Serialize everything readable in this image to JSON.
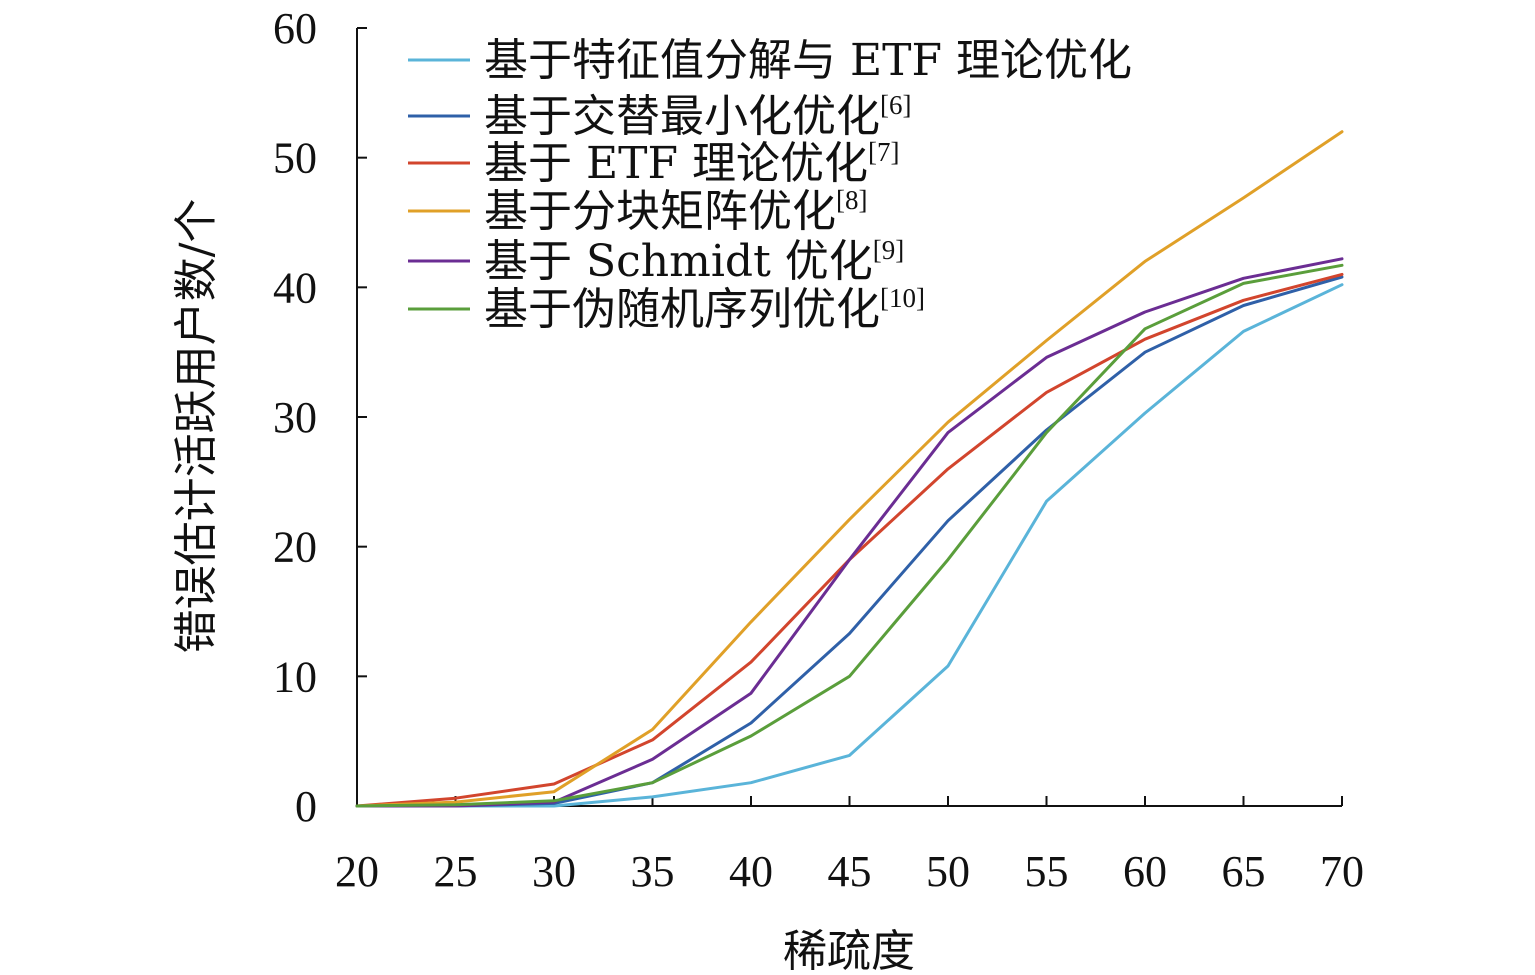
{
  "chart_data": {
    "type": "line",
    "title": "",
    "xlabel": "稀疏度",
    "ylabel": "错误估计活跃用户数/个",
    "x": [
      20,
      25,
      30,
      35,
      40,
      45,
      50,
      55,
      60,
      65,
      70
    ],
    "xlim": [
      20,
      70
    ],
    "ylim": [
      0,
      60
    ],
    "xticks": [
      "20",
      "25",
      "30",
      "35",
      "40",
      "45",
      "50",
      "55",
      "60",
      "65",
      "70"
    ],
    "yticks": [
      "0",
      "10",
      "20",
      "30",
      "40",
      "50",
      "60"
    ],
    "grid": false,
    "legend_position": "top-left",
    "series": [
      {
        "name": "基于特征值分解与 ETF 理论优化",
        "ref": "",
        "color": "#5ab4d9",
        "values": [
          0,
          0,
          0,
          0.7,
          1.8,
          3.9,
          10.8,
          23.5,
          30.3,
          36.6,
          40.2
        ]
      },
      {
        "name": "基于交替最小化优化",
        "ref": "[6]",
        "color": "#2f60a8",
        "values": [
          0,
          0,
          0.2,
          1.8,
          6.4,
          13.3,
          22.0,
          29.0,
          35.0,
          38.6,
          40.8
        ]
      },
      {
        "name": "基于 ETF 理论优化",
        "ref": "[7]",
        "color": "#d2452d",
        "values": [
          0,
          0.6,
          1.7,
          5.1,
          11.1,
          19.0,
          26.0,
          31.9,
          36.0,
          39.0,
          41.0
        ]
      },
      {
        "name": "基于分块矩阵优化",
        "ref": "[8]",
        "color": "#e0a028",
        "values": [
          0,
          0.3,
          1.1,
          5.9,
          14.2,
          22.1,
          29.6,
          35.9,
          42.0,
          46.9,
          52.0
        ]
      },
      {
        "name": "基于 Schmidt 优化",
        "ref": "[9]",
        "color": "#6b2d93",
        "values": [
          0,
          0,
          0.3,
          3.6,
          8.7,
          19.0,
          28.8,
          34.6,
          38.1,
          40.7,
          42.2
        ]
      },
      {
        "name": "基于伪随机序列优化",
        "ref": "[10]",
        "color": "#5a9e3b",
        "values": [
          0,
          0.1,
          0.4,
          1.8,
          5.4,
          10.0,
          19.0,
          28.8,
          36.8,
          40.3,
          41.7
        ]
      }
    ]
  }
}
